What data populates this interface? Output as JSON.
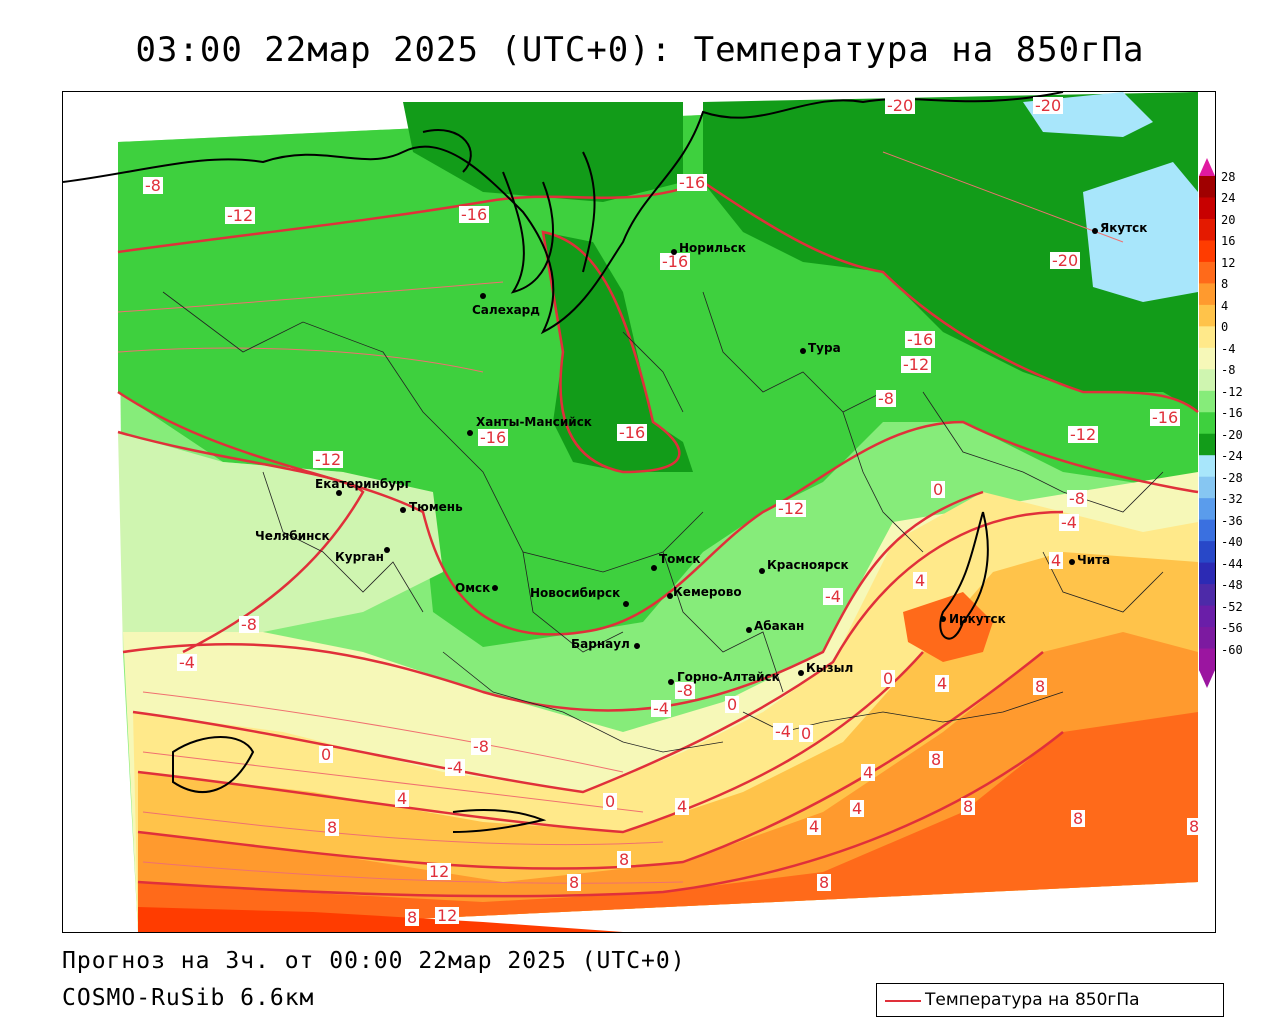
{
  "title": "03:00 22мар 2025 (UTC+0): Температура на 850гПа",
  "footer": {
    "forecast": "Прогноз на 3ч. от 00:00 22мар 2025 (UTC+0)",
    "model": "COSMO-RuSib 6.6км"
  },
  "legend": {
    "label": "Температура на 850гПа",
    "line_color": "#e0303a"
  },
  "colorbar": {
    "labels": [
      "28",
      "24",
      "20",
      "16",
      "12",
      "8",
      "4",
      "0",
      "-4",
      "-8",
      "-12",
      "-16",
      "-20",
      "-24",
      "-28",
      "-32",
      "-36",
      "-40",
      "-44",
      "-48",
      "-52",
      "-56",
      "-60"
    ],
    "colors": [
      "#a00000",
      "#c80000",
      "#e41a00",
      "#ff3c00",
      "#ff6a1a",
      "#ff9a2e",
      "#ffc34a",
      "#ffe98a",
      "#f6f8b8",
      "#cff5b0",
      "#86ec7a",
      "#3ed03e",
      "#129c19",
      "#a8e6fb",
      "#86c6f2",
      "#5a9cec",
      "#3a70e0",
      "#2848c8",
      "#2c2ab4",
      "#4d2aa8",
      "#6a1ea8",
      "#7c1aa0",
      "#9b15a0"
    ]
  },
  "isotherm_labels": [
    "-20",
    "-16",
    "-16",
    "-16",
    "-16",
    "-20",
    "-16",
    "-16",
    "-12",
    "-8",
    "-12",
    "-12",
    "-8",
    "-16",
    "-16",
    "-16",
    "-12",
    "-12",
    "-8",
    "-4",
    "-12",
    "0",
    "-4",
    "-8",
    "-8",
    "-4",
    "4",
    "4",
    "0",
    "4",
    "8",
    "-8",
    "-4",
    "0",
    "-4",
    "0",
    "-8",
    "-4",
    "0",
    "4",
    "0",
    "4",
    "4",
    "8",
    "8",
    "8",
    "8",
    "8",
    "12",
    "8",
    "12",
    "8",
    "8",
    "4",
    "4",
    "8"
  ],
  "cities": [
    "Норильск",
    "Якутск",
    "Салехард",
    "Тура",
    "Ханты-Мансийск",
    "Екатеринбург",
    "Тюмень",
    "Челябинск",
    "Курган",
    "Омск",
    "Новосибирск",
    "Томск",
    "Кемерово",
    "Красноярск",
    "Абакан",
    "Барнаул",
    "Горно-Алтайск",
    "Кызыл",
    "Иркутск",
    "Чита"
  ]
}
